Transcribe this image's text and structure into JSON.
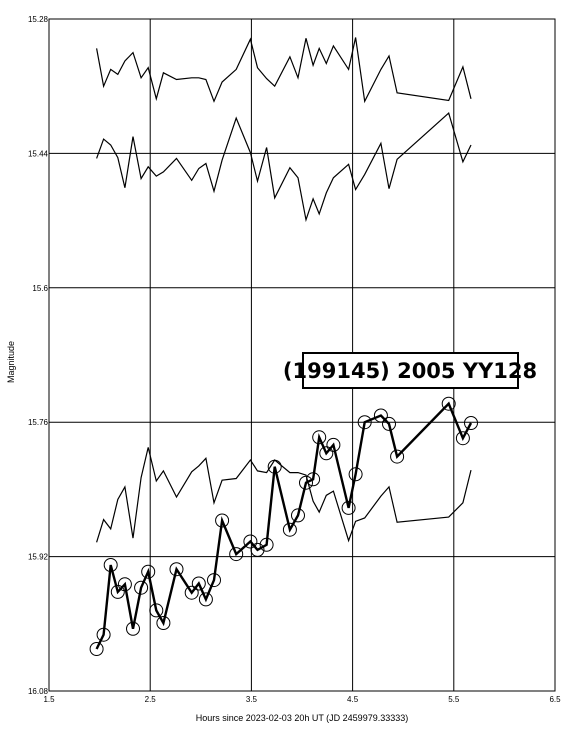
{
  "chart_data": {
    "type": "line",
    "title": "(199145) 2005 YY128",
    "xlabel": "Hours since 2023-02-03 20h UT (JD 2459979.33333)",
    "ylabel": "Magnitude",
    "xlim": [
      1.5,
      6.5
    ],
    "ylim": [
      15.28,
      16.08
    ],
    "y_inverted": true,
    "grid": true,
    "x_ticks": [
      "1.5",
      "2.5",
      "3.5",
      "4.5",
      "5.5",
      "6.5"
    ],
    "y_ticks": [
      "15.28",
      "15.44",
      "15.6",
      "15.76",
      "15.92",
      "16.08"
    ],
    "x": [
      1.97,
      2.04,
      2.11,
      2.18,
      2.25,
      2.33,
      2.41,
      2.48,
      2.56,
      2.63,
      2.76,
      2.91,
      2.98,
      3.05,
      3.13,
      3.21,
      3.35,
      3.49,
      3.56,
      3.65,
      3.73,
      3.88,
      3.96,
      4.04,
      4.11,
      4.17,
      4.24,
      4.31,
      4.46,
      4.53,
      4.62,
      4.78,
      4.86,
      4.94,
      5.45,
      5.59,
      5.67
    ],
    "series": [
      {
        "role": "target",
        "values": [
          16.03,
          16.013,
          15.93,
          15.962,
          15.953,
          16.006,
          15.957,
          15.938,
          15.984,
          15.999,
          15.935,
          15.963,
          15.952,
          15.971,
          15.948,
          15.877,
          15.917,
          15.902,
          15.912,
          15.906,
          15.813,
          15.888,
          15.871,
          15.832,
          15.828,
          15.778,
          15.797,
          15.787,
          15.862,
          15.822,
          15.76,
          15.752,
          15.762,
          15.801,
          15.738,
          15.779,
          15.761
        ]
      },
      {
        "role": "comparison",
        "values": [
          15.903,
          15.876,
          15.887,
          15.852,
          15.837,
          15.898,
          15.826,
          15.79,
          15.83,
          15.818,
          15.849,
          15.819,
          15.812,
          15.803,
          15.856,
          15.829,
          15.827,
          15.805,
          15.818,
          15.82,
          15.805,
          15.82,
          15.82,
          15.823,
          15.854,
          15.867,
          15.847,
          15.842,
          15.901,
          15.878,
          15.874,
          15.848,
          15.837,
          15.879,
          15.873,
          15.856,
          15.817
        ]
      },
      {
        "role": "comparison",
        "values": [
          15.446,
          15.423,
          15.43,
          15.445,
          15.481,
          15.42,
          15.47,
          15.456,
          15.467,
          15.462,
          15.446,
          15.472,
          15.458,
          15.452,
          15.485,
          15.448,
          15.398,
          15.439,
          15.473,
          15.433,
          15.493,
          15.457,
          15.469,
          15.519,
          15.494,
          15.512,
          15.487,
          15.469,
          15.453,
          15.483,
          15.465,
          15.428,
          15.482,
          15.447,
          15.392,
          15.45,
          15.43
        ]
      },
      {
        "role": "comparison",
        "values": [
          15.315,
          15.36,
          15.34,
          15.346,
          15.33,
          15.32,
          15.35,
          15.338,
          15.375,
          15.344,
          15.352,
          15.35,
          15.35,
          15.352,
          15.378,
          15.355,
          15.34,
          15.304,
          15.338,
          15.351,
          15.36,
          15.325,
          15.35,
          15.303,
          15.335,
          15.315,
          15.333,
          15.312,
          15.34,
          15.302,
          15.378,
          15.34,
          15.324,
          15.368,
          15.377,
          15.337,
          15.375
        ]
      }
    ]
  }
}
